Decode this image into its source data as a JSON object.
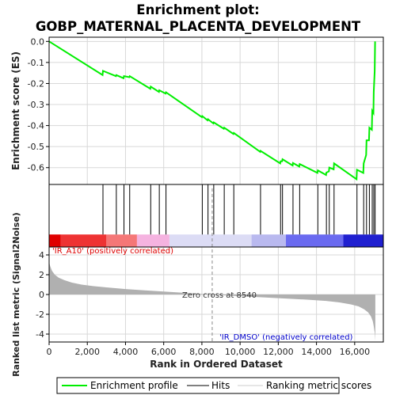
{
  "title_line1": "Enrichment plot:",
  "title_line2": "GOBP_MATERNAL_PLACENTA_DEVELOPMENT",
  "chart_data": [
    {
      "type": "line",
      "name": "enrichment-score-panel",
      "ylabel": "Enrichment score (ES)",
      "ylim": [
        -0.68,
        0.02
      ],
      "yticks": [
        0.0,
        -0.1,
        -0.2,
        -0.3,
        -0.4,
        -0.5,
        -0.6
      ],
      "ytick_labels": [
        "0.0",
        "-0.1",
        "-0.2",
        "-0.3",
        "-0.4",
        "-0.5",
        "-0.6"
      ],
      "xlim": [
        0,
        17500
      ],
      "grid": true,
      "color": "#00ee00",
      "series": [
        {
          "name": "Enrichment profile",
          "x": [
            0,
            2800,
            2820,
            3500,
            3520,
            3900,
            3920,
            4200,
            4220,
            5300,
            5320,
            5750,
            5770,
            6100,
            6120,
            8000,
            8020,
            8300,
            8320,
            8600,
            8620,
            9150,
            9170,
            9650,
            9670,
            11050,
            11070,
            12100,
            12120,
            12200,
            12220,
            12750,
            12770,
            13100,
            13120,
            14050,
            14070,
            14500,
            14520,
            14650,
            14670,
            14900,
            14920,
            16100,
            16120,
            16450,
            16470,
            16600,
            16620,
            16750,
            16770,
            16900,
            16920,
            16980,
            17000,
            17050,
            17070
          ],
          "y": [
            0.0,
            -0.16,
            -0.14,
            -0.165,
            -0.16,
            -0.175,
            -0.165,
            -0.17,
            -0.165,
            -0.225,
            -0.215,
            -0.24,
            -0.232,
            -0.248,
            -0.242,
            -0.36,
            -0.355,
            -0.375,
            -0.37,
            -0.39,
            -0.385,
            -0.415,
            -0.41,
            -0.44,
            -0.435,
            -0.525,
            -0.52,
            -0.58,
            -0.57,
            -0.57,
            -0.56,
            -0.59,
            -0.578,
            -0.595,
            -0.583,
            -0.625,
            -0.613,
            -0.635,
            -0.623,
            -0.618,
            -0.6,
            -0.608,
            -0.58,
            -0.655,
            -0.61,
            -0.625,
            -0.58,
            -0.54,
            -0.47,
            -0.47,
            -0.41,
            -0.42,
            -0.33,
            -0.34,
            -0.24,
            -0.14,
            0.0
          ]
        }
      ]
    },
    {
      "type": "scatter",
      "name": "hits-panel",
      "xlim": [
        0,
        17500
      ],
      "series": [
        {
          "name": "Hits",
          "x": [
            2820,
            3520,
            3920,
            4220,
            5320,
            5770,
            6120,
            8020,
            8320,
            8620,
            9170,
            9670,
            11070,
            12120,
            12220,
            12770,
            13120,
            14070,
            14520,
            14670,
            14920,
            16120,
            16470,
            16620,
            16770,
            16920,
            17000,
            17070
          ]
        }
      ],
      "heatmap_colors": [
        "#e00000",
        "#ee3333",
        "#f57777",
        "#f5b3e0",
        "#dcdcf5",
        "#b9b9ef",
        "#6a6af0",
        "#2020d0"
      ]
    },
    {
      "type": "area",
      "name": "ranked-list-panel",
      "ylabel": "Ranked list metric (Signal2Noise)",
      "xlabel": "Rank in Ordered Dataset",
      "ylim": [
        -4.8,
        4.8
      ],
      "yticks": [
        4,
        2,
        0,
        -2,
        -4
      ],
      "ytick_labels": [
        "4",
        "2",
        "0",
        "-2",
        "-4"
      ],
      "xlim": [
        0,
        17500
      ],
      "xticks": [
        0,
        2000,
        4000,
        6000,
        8000,
        10000,
        12000,
        14000,
        16000
      ],
      "xtick_labels": [
        "0",
        "2,000",
        "4,000",
        "6,000",
        "8,000",
        "10,000",
        "12,000",
        "14,000",
        "16,000"
      ],
      "zero_cross_x": 8540,
      "grid": true,
      "color": "#b0b0b0",
      "series": [
        {
          "name": "Ranking metric scores",
          "x": [
            0,
            50,
            150,
            300,
            500,
            800,
            1200,
            1700,
            2300,
            3000,
            4000,
            5000,
            6000,
            7000,
            8000,
            8540,
            9500,
            10500,
            11500,
            12500,
            13500,
            14500,
            15200,
            15800,
            16200,
            16500,
            16700,
            16850,
            16950,
            17000,
            17060,
            17080
          ],
          "y": [
            3.3,
            2.9,
            2.4,
            2.0,
            1.7,
            1.45,
            1.2,
            1.0,
            0.85,
            0.72,
            0.55,
            0.42,
            0.3,
            0.18,
            0.06,
            0.0,
            -0.12,
            -0.22,
            -0.32,
            -0.42,
            -0.52,
            -0.65,
            -0.8,
            -1.0,
            -1.2,
            -1.5,
            -1.8,
            -2.2,
            -2.7,
            -3.2,
            -4.0,
            -4.7
          ]
        }
      ]
    }
  ],
  "annotations": {
    "positive": "'IR_A10' (positively correlated)",
    "negative": "'IR_DMSO' (negatively correlated)",
    "zero_cross": "Zero cross at 8540"
  },
  "legend": {
    "enrichment": "Enrichment profile",
    "hits": "Hits",
    "ranking": "Ranking metric scores"
  },
  "colors": {
    "enrichment_line": "#00ee00",
    "positive_text": "#dd0000",
    "negative_text": "#0000cc",
    "grid": "#d8d8d8",
    "ranking_fill": "#b0b0b0"
  }
}
